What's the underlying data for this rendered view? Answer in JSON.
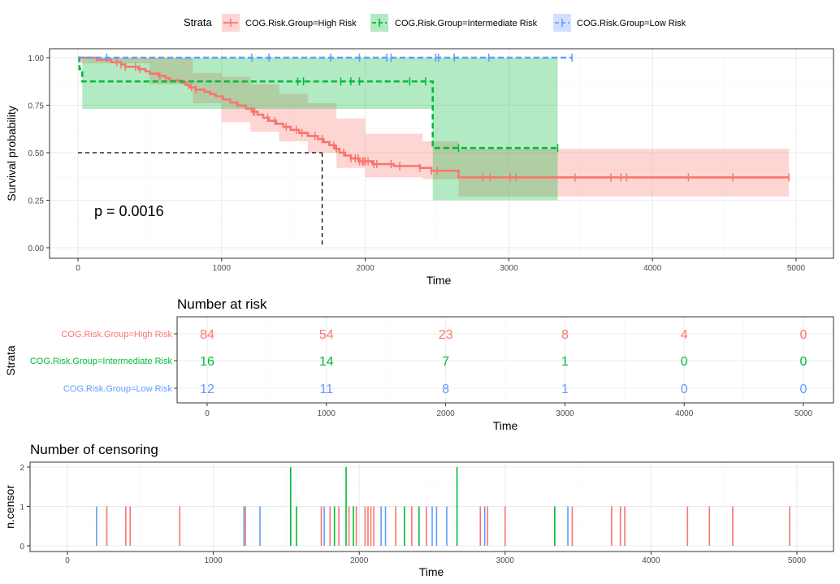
{
  "legend": {
    "title": "Strata",
    "placement": "top",
    "items": [
      {
        "label": "COG.Risk.Group=High Risk",
        "color": "#F8766D"
      },
      {
        "label": "COG.Risk.Group=Intermediate Risk",
        "color": "#00BA38"
      },
      {
        "label": "COG.Risk.Group=Low Risk",
        "color": "#619CFF"
      }
    ]
  },
  "chart_data": [
    {
      "type": "line",
      "subtype": "kaplan-meier step curves with confidence bands",
      "xlabel": "Time",
      "ylabel": "Survival probability",
      "xlim": [
        0,
        5000
      ],
      "ylim": [
        0,
        1
      ],
      "xticks": [
        "0",
        "1000",
        "2000",
        "3000",
        "4000",
        "5000"
      ],
      "yticks": [
        "0.00",
        "0.25",
        "0.50",
        "0.75",
        "1.00"
      ],
      "grid": true,
      "annotation": "p = 0.0016",
      "median_line": {
        "x": 1700,
        "y": 0.5
      },
      "series": [
        {
          "name": "COG.Risk.Group=High Risk",
          "color": "#F8766D",
          "line_style": "solid",
          "steps": [
            [
              0,
              1.0
            ],
            [
              130,
              0.988
            ],
            [
              230,
              0.976
            ],
            [
              300,
              0.964
            ],
            [
              330,
              0.952
            ],
            [
              420,
              0.94
            ],
            [
              470,
              0.928
            ],
            [
              500,
              0.916
            ],
            [
              560,
              0.904
            ],
            [
              610,
              0.892
            ],
            [
              640,
              0.88
            ],
            [
              720,
              0.868
            ],
            [
              750,
              0.856
            ],
            [
              780,
              0.844
            ],
            [
              820,
              0.832
            ],
            [
              880,
              0.82
            ],
            [
              920,
              0.808
            ],
            [
              960,
              0.796
            ],
            [
              1010,
              0.78
            ],
            [
              1060,
              0.764
            ],
            [
              1110,
              0.748
            ],
            [
              1170,
              0.732
            ],
            [
              1210,
              0.716
            ],
            [
              1250,
              0.7
            ],
            [
              1290,
              0.684
            ],
            [
              1330,
              0.668
            ],
            [
              1380,
              0.652
            ],
            [
              1430,
              0.636
            ],
            [
              1480,
              0.62
            ],
            [
              1540,
              0.604
            ],
            [
              1600,
              0.588
            ],
            [
              1670,
              0.572
            ],
            [
              1710,
              0.556
            ],
            [
              1750,
              0.54
            ],
            [
              1790,
              0.52
            ],
            [
              1820,
              0.5
            ],
            [
              1860,
              0.485
            ],
            [
              1900,
              0.47
            ],
            [
              1960,
              0.455
            ],
            [
              2050,
              0.44
            ],
            [
              2200,
              0.43
            ],
            [
              2380,
              0.42
            ],
            [
              2460,
              0.405
            ],
            [
              2520,
              0.405
            ],
            [
              2650,
              0.37
            ],
            [
              4950,
              0.37
            ]
          ],
          "lower": [
            [
              0,
              0.97
            ],
            [
              500,
              0.86
            ],
            [
              800,
              0.76
            ],
            [
              1000,
              0.66
            ],
            [
              1200,
              0.61
            ],
            [
              1400,
              0.56
            ],
            [
              1600,
              0.5
            ],
            [
              1800,
              0.42
            ],
            [
              2000,
              0.37
            ],
            [
              2400,
              0.36
            ],
            [
              2650,
              0.34
            ],
            [
              2650,
              0.27
            ],
            [
              4950,
              0.27
            ]
          ],
          "upper": [
            [
              0,
              1.0
            ],
            [
              600,
              1.0
            ],
            [
              800,
              0.92
            ],
            [
              1000,
              0.9
            ],
            [
              1200,
              0.86
            ],
            [
              1400,
              0.81
            ],
            [
              1600,
              0.76
            ],
            [
              1800,
              0.68
            ],
            [
              2000,
              0.6
            ],
            [
              2400,
              0.56
            ],
            [
              2650,
              0.54
            ],
            [
              2650,
              0.52
            ],
            [
              4950,
              0.52
            ]
          ],
          "censor_times": [
            270,
            300,
            330,
            400,
            430,
            570,
            770,
            790,
            820,
            1220,
            1230,
            1320,
            1370,
            1450,
            1520,
            1560,
            1650,
            1700,
            1780,
            1800,
            1850,
            1900,
            1930,
            1950,
            1960,
            1980,
            1990,
            2000,
            2020,
            2060,
            2080,
            2180,
            2240,
            2380,
            2460,
            2500,
            2820,
            2870,
            3010,
            3050,
            3460,
            3710,
            3780,
            3820,
            4250,
            4560,
            4950
          ]
        },
        {
          "name": "COG.Risk.Group=Intermediate Risk",
          "color": "#00BA38",
          "line_style": "dashed",
          "steps": [
            [
              0,
              1.0
            ],
            [
              10,
              0.94
            ],
            [
              30,
              0.875
            ],
            [
              2470,
              0.875
            ],
            [
              2470,
              0.525
            ],
            [
              3340,
              0.525
            ]
          ],
          "lower": [
            [
              30,
              0.73
            ],
            [
              2470,
              0.73
            ],
            [
              2470,
              0.25
            ],
            [
              3340,
              0.25
            ]
          ],
          "upper": [
            [
              30,
              1.0
            ],
            [
              3340,
              1.0
            ]
          ],
          "censor_times": [
            1530,
            1570,
            1830,
            1900,
            1960,
            2310,
            2420,
            2650,
            3340
          ]
        },
        {
          "name": "COG.Risk.Group=Low Risk",
          "color": "#619CFF",
          "line_style": "dashed",
          "steps": [
            [
              0,
              1.0
            ],
            [
              3440,
              1.0
            ]
          ],
          "censor_times": [
            200,
            1210,
            1330,
            1760,
            1960,
            2150,
            2180,
            2490,
            2510,
            2620,
            2860,
            3440
          ]
        }
      ]
    },
    {
      "type": "table",
      "title": "Number at risk",
      "xlabel": "Time",
      "ylabel": "Strata",
      "xlim": [
        0,
        5000
      ],
      "xticks": [
        "0",
        "1000",
        "2000",
        "3000",
        "4000",
        "5000"
      ],
      "times": [
        0,
        1000,
        2000,
        3000,
        4000,
        5000
      ],
      "rows": [
        {
          "name": "COG.Risk.Group=High Risk",
          "color": "#F8766D",
          "values": [
            "84",
            "54",
            "23",
            "8",
            "4",
            "0"
          ]
        },
        {
          "name": "COG.Risk.Group=Intermediate Risk",
          "color": "#00BA38",
          "values": [
            "16",
            "14",
            "7",
            "1",
            "0",
            "0"
          ]
        },
        {
          "name": "COG.Risk.Group=Low Risk",
          "color": "#619CFF",
          "values": [
            "12",
            "11",
            "8",
            "1",
            "0",
            "0"
          ]
        }
      ]
    },
    {
      "type": "bar",
      "title": "Number of censoring",
      "xlabel": "Time",
      "ylabel": "n.censor",
      "xlim": [
        0,
        5000
      ],
      "ylim": [
        0,
        2
      ],
      "xticks": [
        "0",
        "1000",
        "2000",
        "3000",
        "4000",
        "5000"
      ],
      "yticks": [
        "0",
        "1",
        "2"
      ],
      "bars": [
        {
          "x": 200,
          "n": 1,
          "color": "#619CFF"
        },
        {
          "x": 270,
          "n": 1,
          "color": "#F8766D"
        },
        {
          "x": 400,
          "n": 1,
          "color": "#F8766D"
        },
        {
          "x": 430,
          "n": 1,
          "color": "#F8766D"
        },
        {
          "x": 770,
          "n": 1,
          "color": "#F8766D"
        },
        {
          "x": 1210,
          "n": 1,
          "color": "#619CFF"
        },
        {
          "x": 1220,
          "n": 1,
          "color": "#F8766D"
        },
        {
          "x": 1320,
          "n": 1,
          "color": "#619CFF"
        },
        {
          "x": 1530,
          "n": 2,
          "color": "#00BA38"
        },
        {
          "x": 1570,
          "n": 1,
          "color": "#00BA38"
        },
        {
          "x": 1740,
          "n": 1,
          "color": "#F8766D"
        },
        {
          "x": 1760,
          "n": 1,
          "color": "#619CFF"
        },
        {
          "x": 1800,
          "n": 1,
          "color": "#F8766D"
        },
        {
          "x": 1830,
          "n": 1,
          "color": "#00BA38"
        },
        {
          "x": 1860,
          "n": 1,
          "color": "#F8766D"
        },
        {
          "x": 1910,
          "n": 2,
          "color": "#00BA38"
        },
        {
          "x": 1930,
          "n": 1,
          "color": "#F8766D"
        },
        {
          "x": 1960,
          "n": 1,
          "color": "#00BA38"
        },
        {
          "x": 1980,
          "n": 1,
          "color": "#F8766D"
        },
        {
          "x": 2040,
          "n": 1,
          "color": "#F8766D"
        },
        {
          "x": 2060,
          "n": 1,
          "color": "#F8766D"
        },
        {
          "x": 2080,
          "n": 1,
          "color": "#F8766D"
        },
        {
          "x": 2100,
          "n": 1,
          "color": "#F8766D"
        },
        {
          "x": 2150,
          "n": 1,
          "color": "#619CFF"
        },
        {
          "x": 2180,
          "n": 1,
          "color": "#619CFF"
        },
        {
          "x": 2250,
          "n": 1,
          "color": "#F8766D"
        },
        {
          "x": 2310,
          "n": 1,
          "color": "#00BA38"
        },
        {
          "x": 2360,
          "n": 1,
          "color": "#F8766D"
        },
        {
          "x": 2410,
          "n": 1,
          "color": "#00BA38"
        },
        {
          "x": 2460,
          "n": 1,
          "color": "#F8766D"
        },
        {
          "x": 2500,
          "n": 1,
          "color": "#619CFF"
        },
        {
          "x": 2530,
          "n": 1,
          "color": "#619CFF"
        },
        {
          "x": 2600,
          "n": 1,
          "color": "#619CFF"
        },
        {
          "x": 2670,
          "n": 2,
          "color": "#00BA38"
        },
        {
          "x": 2830,
          "n": 1,
          "color": "#F8766D"
        },
        {
          "x": 2860,
          "n": 1,
          "color": "#619CFF"
        },
        {
          "x": 2880,
          "n": 1,
          "color": "#F8766D"
        },
        {
          "x": 3000,
          "n": 1,
          "color": "#F8766D"
        },
        {
          "x": 3340,
          "n": 1,
          "color": "#00BA38"
        },
        {
          "x": 3430,
          "n": 1,
          "color": "#619CFF"
        },
        {
          "x": 3460,
          "n": 1,
          "color": "#F8766D"
        },
        {
          "x": 3730,
          "n": 1,
          "color": "#F8766D"
        },
        {
          "x": 3790,
          "n": 1,
          "color": "#F8766D"
        },
        {
          "x": 3820,
          "n": 1,
          "color": "#F8766D"
        },
        {
          "x": 4250,
          "n": 1,
          "color": "#F8766D"
        },
        {
          "x": 4400,
          "n": 1,
          "color": "#F8766D"
        },
        {
          "x": 4560,
          "n": 1,
          "color": "#F8766D"
        },
        {
          "x": 4950,
          "n": 1,
          "color": "#F8766D"
        }
      ]
    }
  ]
}
